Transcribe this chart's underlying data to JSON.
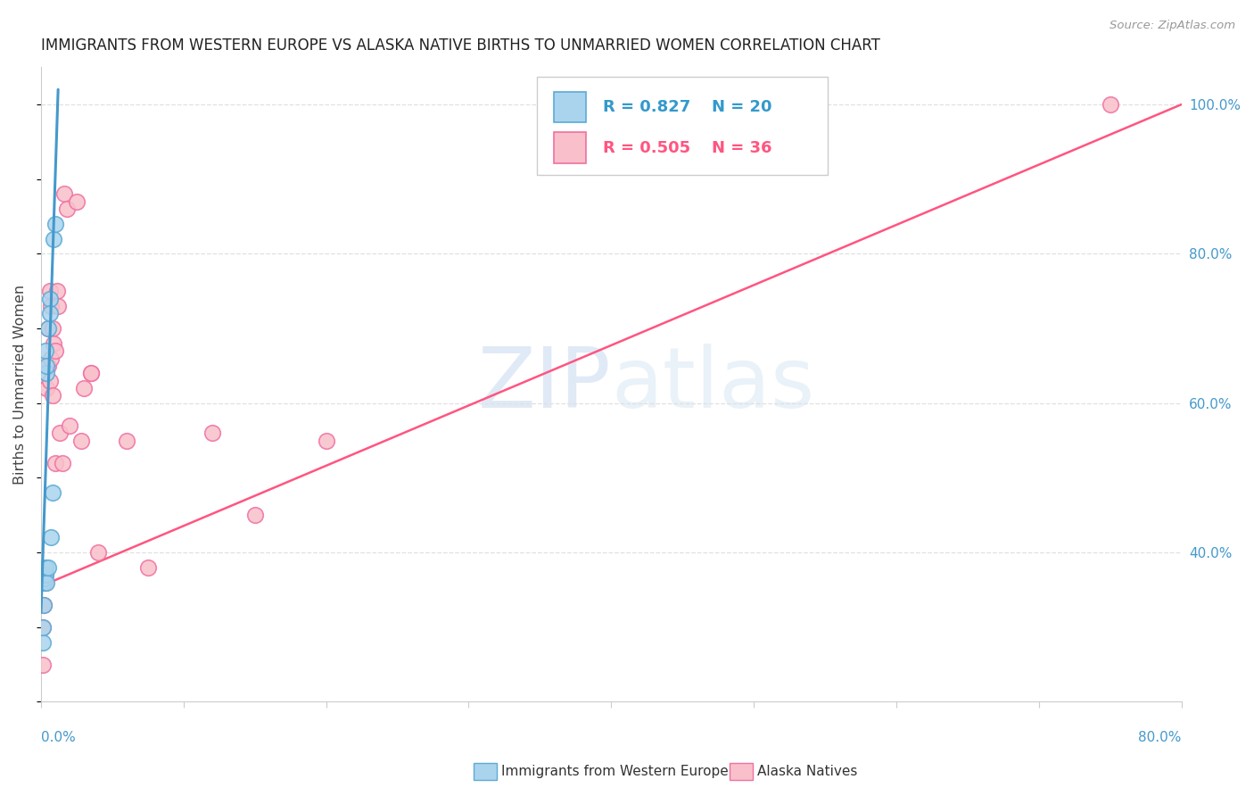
{
  "title": "IMMIGRANTS FROM WESTERN EUROPE VS ALASKA NATIVE BIRTHS TO UNMARRIED WOMEN CORRELATION CHART",
  "source": "Source: ZipAtlas.com",
  "ylabel": "Births to Unmarried Women",
  "right_yticks": [
    0.4,
    0.6,
    0.8,
    1.0
  ],
  "right_yticklabels": [
    "40.0%",
    "60.0%",
    "80.0%",
    "100.0%"
  ],
  "legend_label1": "Immigrants from Western Europe",
  "legend_label2": "Alaska Natives",
  "R1": "0.827",
  "N1": "20",
  "R2": "0.505",
  "N2": "36",
  "color_blue": "#aad4ee",
  "color_pink": "#f9c0cb",
  "color_blue_edge": "#5baad4",
  "color_pink_edge": "#f070a0",
  "color_blue_line": "#4499cc",
  "color_pink_line": "#ff5580",
  "watermark_zip": "ZIP",
  "watermark_atlas": "atlas",
  "blue_scatter_x": [
    0.001,
    0.0015,
    0.002,
    0.002,
    0.002,
    0.0025,
    0.003,
    0.003,
    0.003,
    0.0035,
    0.004,
    0.004,
    0.005,
    0.005,
    0.006,
    0.006,
    0.007,
    0.008,
    0.009,
    0.01
  ],
  "blue_scatter_y": [
    0.28,
    0.3,
    0.33,
    0.36,
    0.37,
    0.365,
    0.37,
    0.38,
    0.67,
    0.64,
    0.36,
    0.65,
    0.7,
    0.38,
    0.74,
    0.72,
    0.42,
    0.48,
    0.82,
    0.84
  ],
  "pink_scatter_x": [
    0.001,
    0.001,
    0.002,
    0.003,
    0.003,
    0.004,
    0.005,
    0.005,
    0.006,
    0.006,
    0.007,
    0.007,
    0.008,
    0.008,
    0.009,
    0.01,
    0.01,
    0.011,
    0.012,
    0.013,
    0.015,
    0.016,
    0.018,
    0.02,
    0.025,
    0.028,
    0.03,
    0.035,
    0.035,
    0.04,
    0.06,
    0.075,
    0.12,
    0.15,
    0.2,
    0.75
  ],
  "pink_scatter_y": [
    0.25,
    0.3,
    0.33,
    0.36,
    0.37,
    0.62,
    0.65,
    0.7,
    0.63,
    0.75,
    0.66,
    0.73,
    0.61,
    0.7,
    0.68,
    0.67,
    0.52,
    0.75,
    0.73,
    0.56,
    0.52,
    0.88,
    0.86,
    0.57,
    0.87,
    0.55,
    0.62,
    0.64,
    0.64,
    0.4,
    0.55,
    0.38,
    0.56,
    0.45,
    0.55,
    1.0
  ],
  "xmin": 0.0,
  "xmax": 0.8,
  "ymin": 0.2,
  "ymax": 1.05,
  "blue_line_x": [
    0.0,
    0.012
  ],
  "blue_line_y": [
    0.32,
    1.02
  ],
  "pink_line_x": [
    0.0,
    0.8
  ],
  "pink_line_y": [
    0.355,
    1.0
  ],
  "xtick_positions": [
    0.0,
    0.1,
    0.2,
    0.3,
    0.4,
    0.5,
    0.6,
    0.7,
    0.8
  ],
  "gridline_color": "#e0e0e0",
  "spine_color": "#cccccc"
}
